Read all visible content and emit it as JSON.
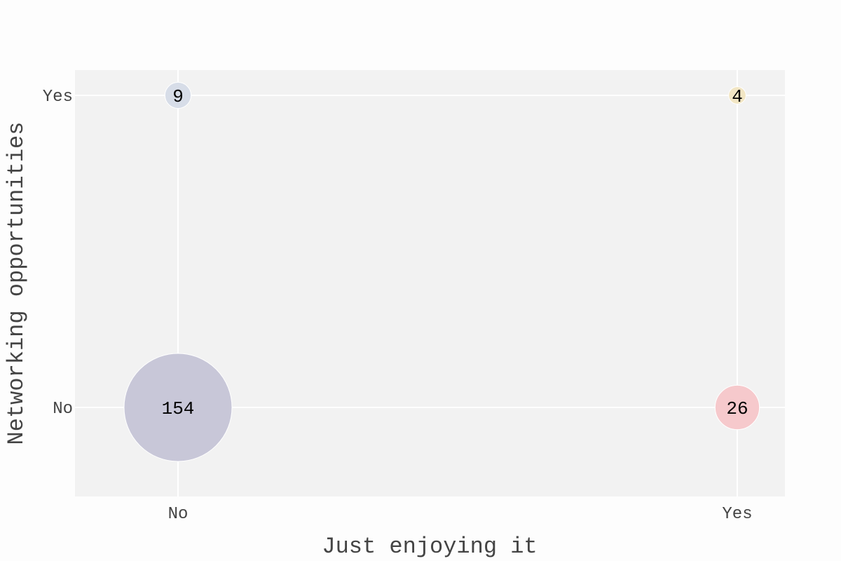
{
  "chart_data": {
    "type": "scatter",
    "xlabel": "Just enjoying it",
    "ylabel": "Networking opportunities",
    "x_categories": [
      "No",
      "Yes"
    ],
    "y_categories": [
      "No",
      "Yes"
    ],
    "grid": true,
    "points": [
      {
        "x": "No",
        "y": "No",
        "value": 154,
        "label": "154",
        "color": "#c8c7d8"
      },
      {
        "x": "Yes",
        "y": "No",
        "value": 26,
        "label": "26",
        "color": "#f6c9cc"
      },
      {
        "x": "No",
        "y": "Yes",
        "value": 9,
        "label": "9",
        "color": "#d7dde8"
      },
      {
        "x": "Yes",
        "y": "Yes",
        "value": 4,
        "label": "4",
        "color": "#f2e6c4"
      }
    ]
  },
  "colors": {
    "plot_background": "#f2f2f2",
    "page_background": "#fdfdfd",
    "grid": "#ffffff"
  }
}
